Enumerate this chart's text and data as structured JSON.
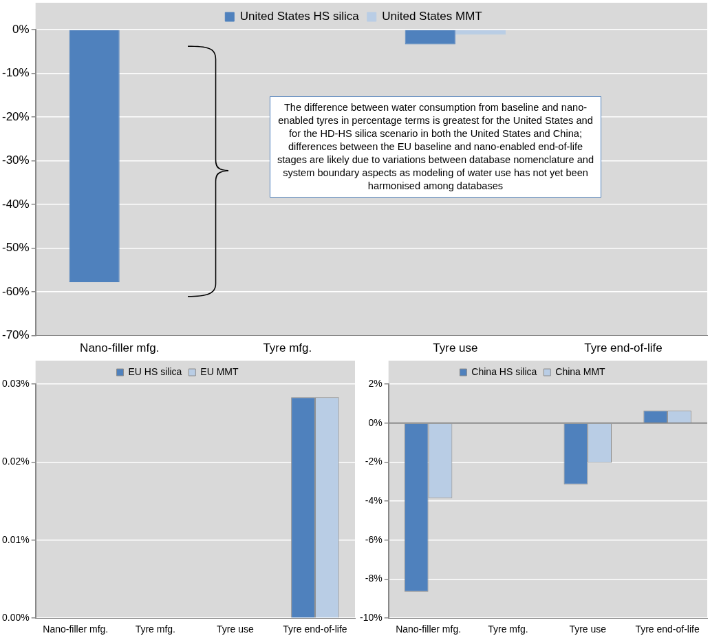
{
  "chart_data": [
    {
      "type": "bar",
      "categories": [
        "Nano-filler mfg.",
        "Tyre mfg.",
        "Tyre use",
        "Tyre end-of-life"
      ],
      "series": [
        {
          "name": "United States HS silica",
          "color": "#4f81bd",
          "values": [
            -57.8,
            0,
            -3.4,
            null
          ]
        },
        {
          "name": "United States MMT",
          "color": "#b9cde5",
          "values": [
            -0.1,
            0,
            -1.2,
            -0.1
          ]
        }
      ],
      "ylim": [
        -70,
        0
      ],
      "yticks": [
        {
          "value": -70,
          "label": "-70%"
        },
        {
          "value": -60,
          "label": "-60%"
        },
        {
          "value": -50,
          "label": "-50%"
        },
        {
          "value": -40,
          "label": "-40%"
        },
        {
          "value": -30,
          "label": "-30%"
        },
        {
          "value": -20,
          "label": "-20%"
        },
        {
          "value": -10,
          "label": "-10%"
        },
        {
          "value": 0,
          "label": "0%"
        }
      ],
      "grid": "y",
      "legend": "top",
      "annotations": [
        "The difference between water consumption from baseline and nano-enabled tyres in percentage terms is greatest for the United States and for the HD-HS silica scenario in both the United States and China; differences between the EU baseline and nano-enabled end-of-life stages are likely due to variations between database nomenclature and system boundary aspects as modeling of water use has not yet been harmonised among databases"
      ]
    },
    {
      "type": "bar",
      "categories": [
        "Nano-filler mfg.",
        "Tyre mfg.",
        "Tyre use",
        "Tyre end-of-life"
      ],
      "series": [
        {
          "name": "EU HS silica",
          "color": "#4f81bd",
          "values": [
            0,
            0,
            0,
            0.0283
          ]
        },
        {
          "name": "EU MMT",
          "color": "#b9cde5",
          "values": [
            0,
            0,
            0,
            0.0283
          ]
        }
      ],
      "ylim": [
        0,
        0.03
      ],
      "yticks": [
        {
          "value": 0,
          "label": "0.00%"
        },
        {
          "value": 0.01,
          "label": "0.01%"
        },
        {
          "value": 0.02,
          "label": "0.02%"
        },
        {
          "value": 0.03,
          "label": "0.03%"
        }
      ],
      "grid": "y",
      "legend": "top"
    },
    {
      "type": "bar",
      "categories": [
        "Nano-filler mfg.",
        "Tyre mfg.",
        "Tyre use",
        "Tyre end-of-life"
      ],
      "series": [
        {
          "name": "China HS silica",
          "color": "#4f81bd",
          "values": [
            -8.64,
            0,
            -3.14,
            0.64
          ]
        },
        {
          "name": "China MMT",
          "color": "#b9cde5",
          "values": [
            -3.85,
            0,
            -2.03,
            0.64
          ]
        }
      ],
      "ylim": [
        -10,
        2
      ],
      "yticks": [
        {
          "value": -10,
          "label": "-10%"
        },
        {
          "value": -8,
          "label": "-8%"
        },
        {
          "value": -6,
          "label": "-6%"
        },
        {
          "value": -4,
          "label": "-4%"
        },
        {
          "value": -2,
          "label": "-2%"
        },
        {
          "value": 0,
          "label": "0%"
        },
        {
          "value": 2,
          "label": "2%"
        }
      ],
      "grid": "y",
      "legend": "top"
    }
  ]
}
